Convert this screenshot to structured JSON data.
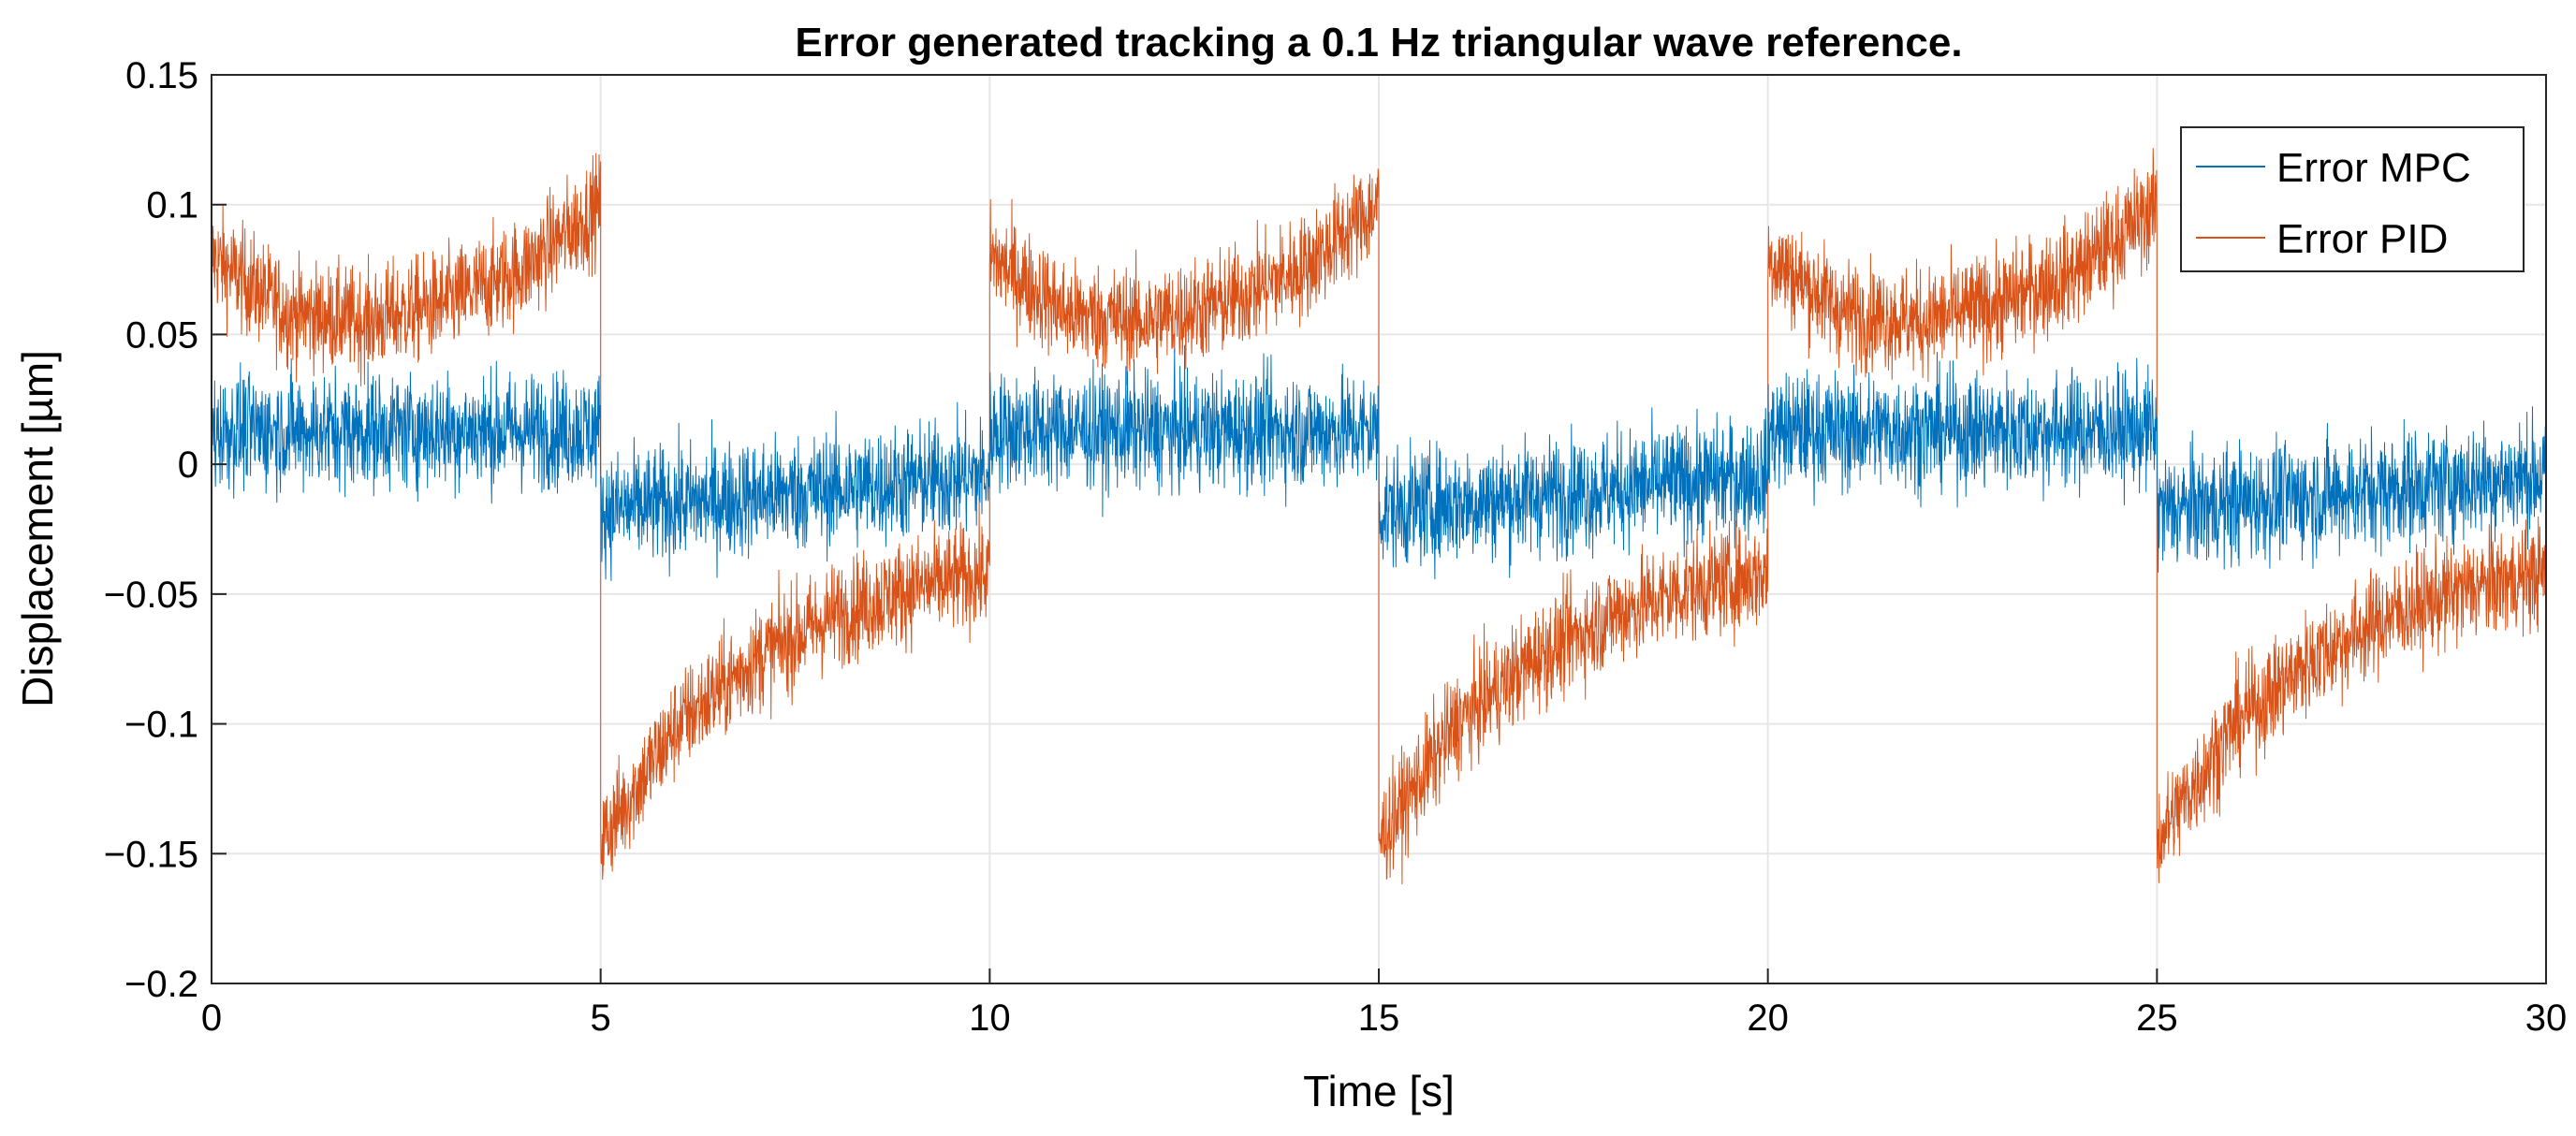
{
  "chart_data": {
    "type": "line",
    "title": "Error generated tracking a 0.1 Hz triangular wave reference.",
    "xlabel": "Time [s]",
    "ylabel": "Displacement [µm]",
    "xlim": [
      0,
      30
    ],
    "ylim": [
      -0.2,
      0.15
    ],
    "grid": true,
    "legend_position": "top-right",
    "x_ticks": [
      0,
      5,
      10,
      15,
      20,
      25,
      30
    ],
    "x_tick_labels": [
      "0",
      "5",
      "10",
      "15",
      "20",
      "25",
      "30"
    ],
    "y_ticks": [
      0.15,
      0.1,
      0.05,
      0,
      -0.05,
      -0.1,
      -0.15,
      -0.2
    ],
    "y_tick_labels": [
      "0.15",
      "0.1",
      "0.05",
      "0",
      "−0.05",
      "−0.1",
      "−0.15",
      "−0.2"
    ],
    "series": [
      {
        "name": "Error MPC",
        "color": "#0072BD",
        "description": "noisy square-wave-like error switching sign every 5 s",
        "x": [
          0,
          5,
          5,
          10,
          10,
          15,
          15,
          20,
          20,
          25,
          25,
          30
        ],
        "mean": [
          0.013,
          0.013,
          -0.018,
          -0.004,
          0.013,
          0.013,
          -0.018,
          -0.004,
          0.013,
          0.013,
          -0.018,
          -0.004
        ],
        "noise_amplitude": 0.022
      },
      {
        "name": "Error PID",
        "color": "#D95319",
        "description": "noisy sawtooth-like error with exponential recovery after each reversal",
        "segments": [
          {
            "x": [
              0,
              1,
              2,
              3,
              4,
              5
            ],
            "mean": [
              0.08,
              0.058,
              0.055,
              0.062,
              0.075,
              0.1
            ]
          },
          {
            "x": [
              5,
              6,
              7,
              8,
              9,
              10
            ],
            "mean": [
              -0.145,
              -0.1,
              -0.075,
              -0.058,
              -0.048,
              -0.042
            ]
          },
          {
            "x": [
              10,
              11,
              12,
              13,
              14,
              15
            ],
            "mean": [
              0.08,
              0.058,
              0.055,
              0.062,
              0.075,
              0.1
            ]
          },
          {
            "x": [
              15,
              16,
              17,
              18,
              19,
              20
            ],
            "mean": [
              -0.145,
              -0.1,
              -0.075,
              -0.058,
              -0.048,
              -0.042
            ]
          },
          {
            "x": [
              20,
              21,
              22,
              23,
              24,
              25
            ],
            "mean": [
              0.08,
              0.058,
              0.055,
              0.062,
              0.075,
              0.1
            ]
          },
          {
            "x": [
              25,
              26,
              27,
              28,
              29,
              30
            ],
            "mean": [
              -0.145,
              -0.1,
              -0.075,
              -0.058,
              -0.048,
              -0.042
            ]
          }
        ],
        "noise_amplitude": 0.02
      }
    ]
  }
}
